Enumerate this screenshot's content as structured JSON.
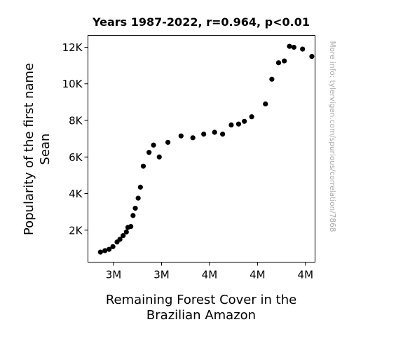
{
  "chart_data": {
    "type": "scatter",
    "title": "Years 1987-2022, r=0.964, p<0.01",
    "xlabel": [
      "Remaining Forest Cover in the",
      "Brazilian Amazon"
    ],
    "ylabel": [
      "Popularity of the first name",
      "Sean"
    ],
    "watermark": "More info: tylervigen.com/spurious/correlation/7868",
    "marker_color": "#000000",
    "grid": false,
    "x_units": "square kilometers",
    "xlim": [
      3170000,
      3880000
    ],
    "ylim": [
      250,
      12650
    ],
    "x_ticks": [
      {
        "value": 3250000,
        "label": "3M"
      },
      {
        "value": 3400000,
        "label": "3M"
      },
      {
        "value": 3550000,
        "label": "4M"
      },
      {
        "value": 3700000,
        "label": "4M"
      },
      {
        "value": 3850000,
        "label": "4M"
      }
    ],
    "y_ticks": [
      {
        "value": 2000,
        "label": "2K"
      },
      {
        "value": 4000,
        "label": "4K"
      },
      {
        "value": 6000,
        "label": "6K"
      },
      {
        "value": 8000,
        "label": "8K"
      },
      {
        "value": 10000,
        "label": "10K"
      },
      {
        "value": 12000,
        "label": "12K"
      }
    ],
    "points": [
      {
        "x": 3209000,
        "y": 800
      },
      {
        "x": 3223000,
        "y": 880
      },
      {
        "x": 3236000,
        "y": 950
      },
      {
        "x": 3248000,
        "y": 1100
      },
      {
        "x": 3261000,
        "y": 1350
      },
      {
        "x": 3270000,
        "y": 1500
      },
      {
        "x": 3280000,
        "y": 1700
      },
      {
        "x": 3290000,
        "y": 1900
      },
      {
        "x": 3295000,
        "y": 2150
      },
      {
        "x": 3304000,
        "y": 2200
      },
      {
        "x": 3311000,
        "y": 2800
      },
      {
        "x": 3318000,
        "y": 3200
      },
      {
        "x": 3327000,
        "y": 3750
      },
      {
        "x": 3334000,
        "y": 4350
      },
      {
        "x": 3343000,
        "y": 5500
      },
      {
        "x": 3361000,
        "y": 6250
      },
      {
        "x": 3375000,
        "y": 6650
      },
      {
        "x": 3393000,
        "y": 6000
      },
      {
        "x": 3420000,
        "y": 6800
      },
      {
        "x": 3461000,
        "y": 7150
      },
      {
        "x": 3498000,
        "y": 7050
      },
      {
        "x": 3532000,
        "y": 7250
      },
      {
        "x": 3566000,
        "y": 7350
      },
      {
        "x": 3591000,
        "y": 7250
      },
      {
        "x": 3618000,
        "y": 7750
      },
      {
        "x": 3641000,
        "y": 7800
      },
      {
        "x": 3659000,
        "y": 7950
      },
      {
        "x": 3682000,
        "y": 8200
      },
      {
        "x": 3725000,
        "y": 8900
      },
      {
        "x": 3745000,
        "y": 10250
      },
      {
        "x": 3766000,
        "y": 11150
      },
      {
        "x": 3784000,
        "y": 11250
      },
      {
        "x": 3800000,
        "y": 12050
      },
      {
        "x": 3814000,
        "y": 12000
      },
      {
        "x": 3841000,
        "y": 11900
      },
      {
        "x": 3870000,
        "y": 11500
      }
    ]
  }
}
